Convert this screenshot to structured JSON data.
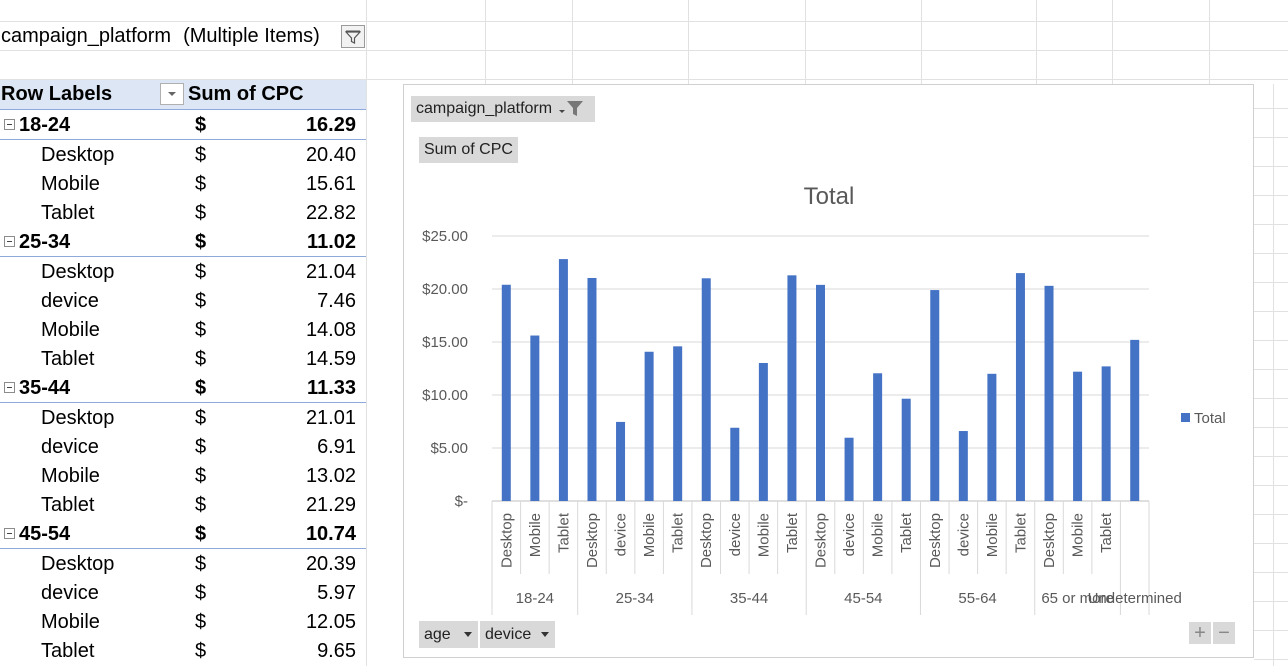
{
  "filter": {
    "field": "campaign_platform",
    "value": "(Multiple Items)"
  },
  "pivot": {
    "row_labels_header": "Row Labels",
    "sum_header": "Sum of CPC",
    "currency": "$",
    "rows": [
      {
        "type": "group",
        "label": "18-24",
        "value": "16.29"
      },
      {
        "type": "item",
        "label": "Desktop",
        "value": "20.40"
      },
      {
        "type": "item",
        "label": "Mobile",
        "value": "15.61"
      },
      {
        "type": "item",
        "label": "Tablet",
        "value": "22.82"
      },
      {
        "type": "group",
        "label": "25-34",
        "value": "11.02"
      },
      {
        "type": "item",
        "label": "Desktop",
        "value": "21.04"
      },
      {
        "type": "item",
        "label": "device",
        "value": "7.46"
      },
      {
        "type": "item",
        "label": "Mobile",
        "value": "14.08"
      },
      {
        "type": "item",
        "label": "Tablet",
        "value": "14.59"
      },
      {
        "type": "group",
        "label": "35-44",
        "value": "11.33"
      },
      {
        "type": "item",
        "label": "Desktop",
        "value": "21.01"
      },
      {
        "type": "item",
        "label": "device",
        "value": "6.91"
      },
      {
        "type": "item",
        "label": "Mobile",
        "value": "13.02"
      },
      {
        "type": "item",
        "label": "Tablet",
        "value": "21.29"
      },
      {
        "type": "group",
        "label": "45-54",
        "value": "10.74"
      },
      {
        "type": "item",
        "label": "Desktop",
        "value": "20.39"
      },
      {
        "type": "item",
        "label": "device",
        "value": "5.97"
      },
      {
        "type": "item",
        "label": "Mobile",
        "value": "12.05"
      },
      {
        "type": "item",
        "label": "Tablet",
        "value": "9.65"
      }
    ]
  },
  "chart_buttons": {
    "filter_field": "campaign_platform",
    "value_field": "Sum of CPC",
    "axis_field_1": "age",
    "axis_field_2": "device",
    "zoom_in": "+",
    "zoom_out": "−"
  },
  "chart_data": {
    "type": "bar",
    "title": "Total",
    "legend": "Total",
    "legend_position": "right",
    "bar_color": "#4472c4",
    "y_ticks": [
      "$-",
      "$5.00",
      "$10.00",
      "$15.00",
      "$20.00",
      "$25.00"
    ],
    "ylim": [
      0,
      25
    ],
    "groups": [
      {
        "label": "18-24",
        "bars": [
          {
            "label": "Desktop",
            "value": 20.4
          },
          {
            "label": "Mobile",
            "value": 15.61
          },
          {
            "label": "Tablet",
            "value": 22.82
          }
        ]
      },
      {
        "label": "25-34",
        "bars": [
          {
            "label": "Desktop",
            "value": 21.04
          },
          {
            "label": "device",
            "value": 7.46
          },
          {
            "label": "Mobile",
            "value": 14.08
          },
          {
            "label": "Tablet",
            "value": 14.59
          }
        ]
      },
      {
        "label": "35-44",
        "bars": [
          {
            "label": "Desktop",
            "value": 21.01
          },
          {
            "label": "device",
            "value": 6.91
          },
          {
            "label": "Mobile",
            "value": 13.02
          },
          {
            "label": "Tablet",
            "value": 21.29
          }
        ]
      },
      {
        "label": "45-54",
        "bars": [
          {
            "label": "Desktop",
            "value": 20.39
          },
          {
            "label": "device",
            "value": 5.97
          },
          {
            "label": "Mobile",
            "value": 12.05
          },
          {
            "label": "Tablet",
            "value": 9.65
          }
        ]
      },
      {
        "label": "55-64",
        "bars": [
          {
            "label": "Desktop",
            "value": 19.9
          },
          {
            "label": "device",
            "value": 6.6
          },
          {
            "label": "Mobile",
            "value": 12.0
          },
          {
            "label": "Tablet",
            "value": 21.5
          }
        ]
      },
      {
        "label": "65 or more",
        "bars": [
          {
            "label": "Desktop",
            "value": 20.3
          },
          {
            "label": "Mobile",
            "value": 12.2
          },
          {
            "label": "Tablet",
            "value": 12.7
          }
        ]
      },
      {
        "label": "Undetermined",
        "bars": [
          {
            "label": "",
            "value": 15.2
          }
        ]
      }
    ]
  }
}
